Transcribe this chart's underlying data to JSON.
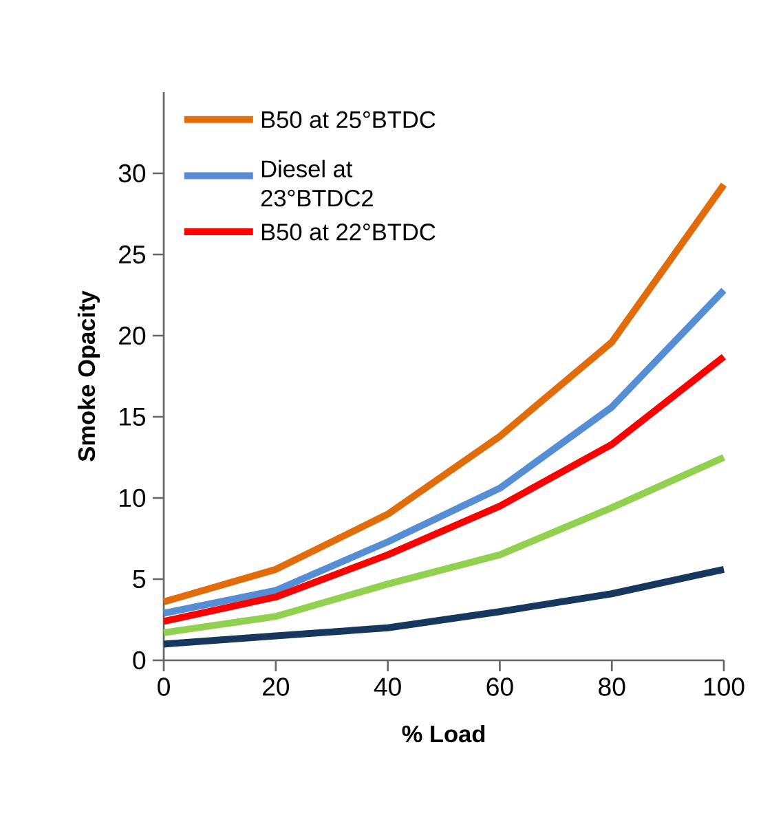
{
  "chart_data": {
    "type": "line",
    "xlabel": "% Load",
    "ylabel": "Smoke Opacity",
    "x": [
      0,
      20,
      40,
      60,
      80,
      100
    ],
    "series": [
      {
        "name": "B50 at 25°BTDC",
        "color": "#e36c0a",
        "values": [
          3.6,
          5.6,
          9.0,
          13.8,
          19.6,
          29.3
        ]
      },
      {
        "name": "Diesel at 23°BTDC2",
        "color": "#558ed5",
        "values": [
          2.9,
          4.3,
          7.3,
          10.6,
          15.6,
          22.8
        ]
      },
      {
        "name": "B50 at 22°BTDC",
        "color": "#ff0000",
        "values": [
          2.4,
          3.9,
          6.5,
          9.5,
          13.3,
          18.7
        ]
      },
      {
        "color": "#92d050",
        "values": [
          1.7,
          2.7,
          4.7,
          6.5,
          9.4,
          12.5
        ]
      },
      {
        "color": "#17375e",
        "values": [
          1.0,
          1.5,
          2.0,
          3.0,
          4.1,
          5.6
        ]
      }
    ],
    "xlim": [
      0,
      100
    ],
    "xticks": [
      0,
      20,
      40,
      60,
      80,
      100
    ],
    "ylim": [
      0,
      35
    ],
    "yticks": [
      0,
      5,
      10,
      15,
      20,
      25,
      30
    ],
    "grid": false,
    "legend": "top left",
    "marker": "none",
    "line_style": "solid"
  }
}
